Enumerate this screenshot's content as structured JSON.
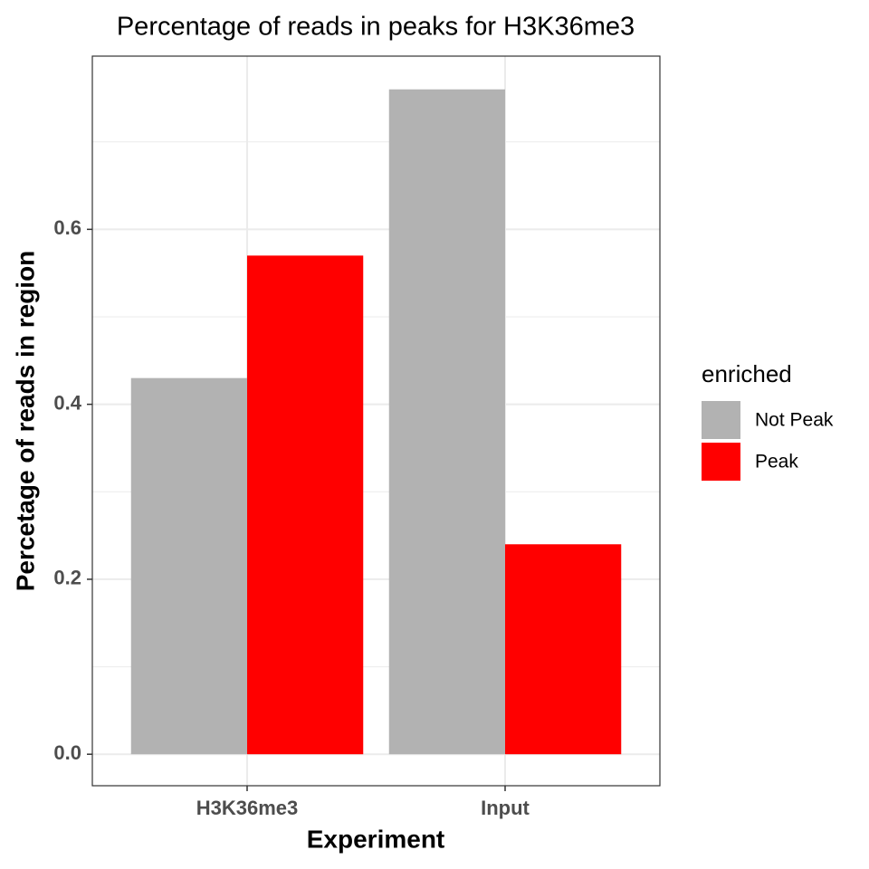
{
  "chart_data": {
    "type": "bar",
    "title": "Percentage of reads in peaks for H3K36me3",
    "x_label": "Experiment",
    "y_label": "Percetage of reads in region",
    "categories": [
      "H3K36me3",
      "Input"
    ],
    "series": [
      {
        "name": "Not Peak",
        "color": "#b2b2b2",
        "values": [
          0.43,
          0.76
        ]
      },
      {
        "name": "Peak",
        "color": "#ff0000",
        "values": [
          0.57,
          0.24
        ]
      }
    ],
    "legend_title": "enriched",
    "legend": "right",
    "ylim": [
      -0.036,
      0.798
    ],
    "yticks": [
      {
        "value": 0,
        "label": "0.0"
      },
      0.2,
      0.4,
      0.6
    ],
    "minor_yticks": [
      0.1,
      0.3,
      0.5,
      0.7
    ],
    "grid": true
  }
}
